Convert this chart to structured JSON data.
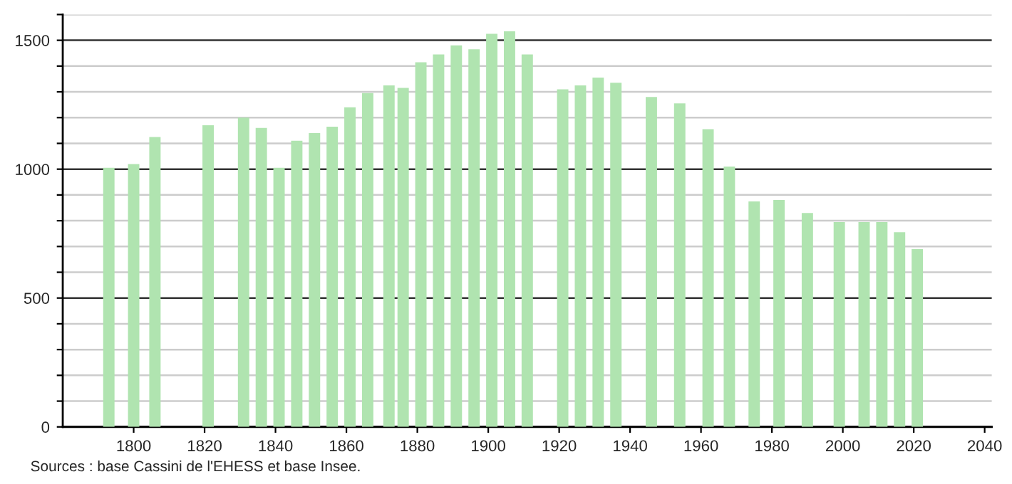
{
  "chart_data": {
    "type": "bar",
    "x": [
      1793,
      1800,
      1806,
      1821,
      1831,
      1836,
      1841,
      1846,
      1851,
      1856,
      1861,
      1866,
      1872,
      1876,
      1881,
      1886,
      1891,
      1896,
      1901,
      1906,
      1911,
      1921,
      1926,
      1931,
      1936,
      1946,
      1954,
      1962,
      1968,
      1975,
      1982,
      1990,
      1999,
      2006,
      2011,
      2016,
      2021
    ],
    "values": [
      1005,
      1020,
      1125,
      1170,
      1200,
      1160,
      1005,
      1110,
      1140,
      1165,
      1240,
      1295,
      1325,
      1315,
      1415,
      1445,
      1480,
      1465,
      1525,
      1535,
      1445,
      1310,
      1325,
      1355,
      1335,
      1280,
      1255,
      1155,
      1010,
      875,
      880,
      830,
      795,
      795,
      795,
      755,
      690
    ],
    "color": "#b0e4b0",
    "xlim": [
      1780,
      2042
    ],
    "xticks": [
      1800,
      1820,
      1840,
      1860,
      1880,
      1900,
      1920,
      1940,
      1960,
      1980,
      2000,
      2020,
      2040
    ],
    "ylim": [
      0,
      1600
    ],
    "yticks": [
      0,
      {
        "value": 100,
        "label": null
      },
      {
        "value": 200,
        "label": null
      },
      {
        "value": 300,
        "label": null
      },
      {
        "value": 400,
        "label": null
      },
      500,
      {
        "value": 600,
        "label": null
      },
      {
        "value": 700,
        "label": null
      },
      {
        "value": 800,
        "label": null
      },
      {
        "value": 900,
        "label": null
      },
      1000,
      {
        "value": 1100,
        "label": null
      },
      {
        "value": 1200,
        "label": null
      },
      {
        "value": 1300,
        "label": null
      },
      {
        "value": 1400,
        "label": null
      },
      1500,
      {
        "value": 1600,
        "label": null
      }
    ],
    "grid": "y",
    "annotations": [
      "Sources : base Cassini de l'EHESS et base Insee."
    ]
  }
}
